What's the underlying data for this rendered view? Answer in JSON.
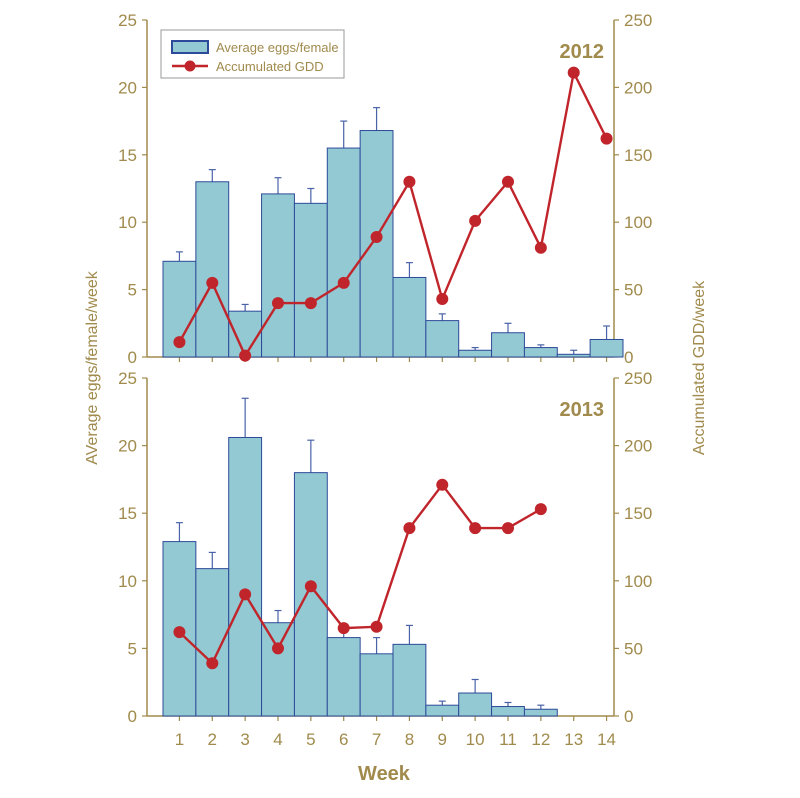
{
  "chart_data": {
    "type": "bar",
    "x_label": "Week",
    "y_left_label": "AVerage eggs/female/week",
    "y_right_label": "Accumulated GDD/week",
    "legend": [
      "Average eggs/female",
      "Accumulated GDD"
    ],
    "legend_placement": "top-left",
    "categories": [
      "1",
      "2",
      "3",
      "4",
      "5",
      "6",
      "7",
      "8",
      "9",
      "10",
      "11",
      "12",
      "13",
      "14"
    ],
    "y_left_range": [
      0,
      25
    ],
    "y_right_range": [
      0,
      250
    ],
    "y_left_ticks": [
      "0",
      "5",
      "10",
      "15",
      "20",
      "25"
    ],
    "y_right_ticks": [
      "0",
      "50",
      "100",
      "150",
      "200",
      "250"
    ],
    "grid": false,
    "colors": {
      "bar_fill": "#93c9d3",
      "bar_stroke": "#2d4a9a",
      "error_bar": "#4a63a8",
      "line": "#c0252b",
      "axis": "#a08a4c",
      "text": "#a08a4c"
    },
    "panels": [
      {
        "title": "2012",
        "show_legend": true,
        "eggs": [
          7.1,
          13.0,
          3.4,
          12.1,
          11.4,
          15.5,
          16.8,
          5.9,
          2.7,
          0.5,
          1.8,
          0.7,
          0.2,
          1.3
        ],
        "eggs_error": [
          0.7,
          0.9,
          0.5,
          1.2,
          1.1,
          2.0,
          1.7,
          1.1,
          0.5,
          0.2,
          0.7,
          0.2,
          0.3,
          1.0
        ],
        "gdd": [
          11,
          55,
          1,
          40,
          40,
          55,
          89,
          130,
          43,
          101,
          130,
          81,
          211,
          162
        ]
      },
      {
        "title": "2013",
        "show_legend": false,
        "eggs": [
          12.9,
          10.9,
          20.6,
          6.9,
          18.0,
          5.8,
          4.6,
          5.3,
          0.8,
          1.7,
          0.7,
          0.5,
          null,
          null
        ],
        "eggs_error": [
          1.4,
          1.2,
          2.9,
          0.9,
          2.4,
          0.9,
          1.2,
          1.4,
          0.3,
          1.0,
          0.3,
          0.3,
          null,
          null
        ],
        "gdd": [
          62,
          39,
          90,
          50,
          96,
          65,
          66,
          139,
          171,
          139,
          139,
          153,
          null,
          null
        ]
      }
    ]
  }
}
